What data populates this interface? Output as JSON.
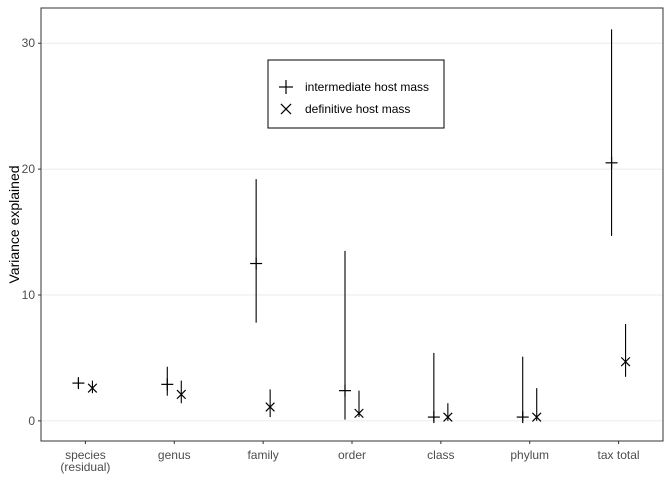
{
  "chart_data": {
    "type": "scatter",
    "ylabel": "Variance explained",
    "xlabel": "",
    "ylim": [
      -1.6,
      32.8
    ],
    "yticks": [
      0,
      10,
      20,
      30
    ],
    "grid": true,
    "legend_position": "top-center",
    "categories": [
      [
        "species",
        "(residual)"
      ],
      [
        "genus"
      ],
      [
        "family"
      ],
      [
        "order"
      ],
      [
        "class"
      ],
      [
        "phylum"
      ],
      [
        "tax total"
      ]
    ],
    "series": [
      {
        "name": "intermediate host mass",
        "marker": "plus",
        "values": [
          3.0,
          2.9,
          12.5,
          2.4,
          0.3,
          0.3,
          20.5
        ],
        "lower": [
          2.6,
          2.0,
          7.8,
          0.1,
          0.0,
          0.0,
          14.7
        ],
        "upper": [
          3.4,
          4.3,
          19.2,
          13.5,
          5.4,
          5.1,
          31.1
        ]
      },
      {
        "name": "definitive host mass",
        "marker": "cross",
        "values": [
          2.6,
          2.1,
          1.1,
          0.6,
          0.3,
          0.3,
          4.7
        ],
        "lower": [
          2.2,
          1.4,
          0.3,
          0.3,
          0.0,
          0.0,
          3.5
        ],
        "upper": [
          3.2,
          3.2,
          2.5,
          2.4,
          1.4,
          2.6,
          7.7
        ]
      }
    ],
    "colors": {
      "marks": "#000000",
      "grid": "#ebebeb",
      "tick": "#4d4d4d",
      "panel_border": "#333333"
    }
  }
}
